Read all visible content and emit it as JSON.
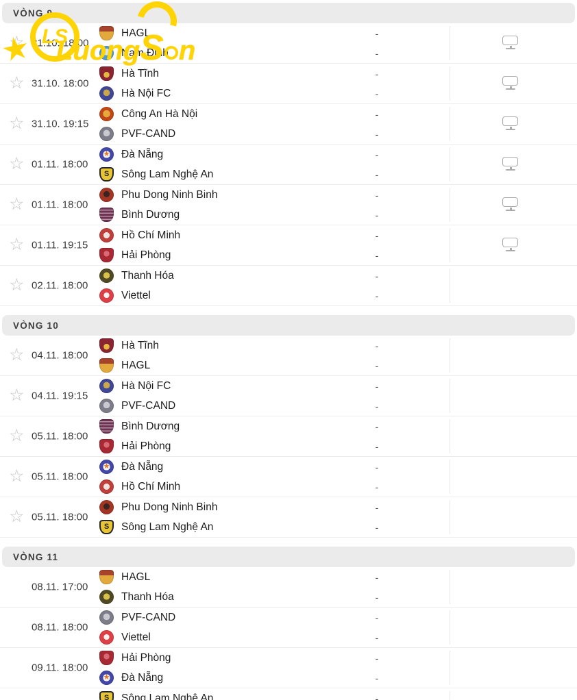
{
  "watermark": {
    "monogram": "LS",
    "text_part1": "Luong",
    "text_S": "S",
    "text_part2": "n",
    "color": "#ffd405"
  },
  "colors": {
    "section_header_bg": "#ebebeb",
    "section_header_text": "#3f3f3f",
    "row_separator": "#ededed",
    "star_icon": "#c6c6c6",
    "tv_icon": "#ababab",
    "datetime_text": "#3b3b3b",
    "team_text": "#1c1c1c",
    "score_text": "#4a4a4a",
    "divider": "#e7e7e7"
  },
  "icons": {
    "star": "☆",
    "tv": "tv-monitor"
  },
  "teams": {
    "HAGL": {
      "shape": "shield",
      "bg": "linear-gradient(180deg,#a8432b 0% 38%,#e3a93c 38% 100%)",
      "glyph": "",
      "glyph_color": ""
    },
    "Nam Định": {
      "shape": "circle",
      "bg": "radial-gradient(circle at 50% 42%,#cfe4f6 0% 30%,#4e9ad4 31% 100%)",
      "glyph": "",
      "glyph_color": ""
    },
    "Hà Tĩnh": {
      "shape": "shield",
      "bg": "radial-gradient(circle at 50% 58%,#e5b93f 0% 26%,#8a2430 27% 100%)",
      "glyph": "",
      "glyph_color": ""
    },
    "Hà Nội FC": {
      "shape": "circle",
      "bg": "radial-gradient(circle at 50% 45%,#caa84a 0% 30%,#3f4796 31% 100%)",
      "glyph": "",
      "glyph_color": ""
    },
    "Công An Hà Nội": {
      "shape": "circle",
      "bg": "radial-gradient(circle at 50% 48%,#e8a93c 0% 34%,#bf4718 35% 100%)",
      "glyph": "",
      "glyph_color": ""
    },
    "PVF-CAND": {
      "shape": "circle",
      "bg": "radial-gradient(circle at 50% 45%,#c9c9d2 0% 30%,#7d7d89 31% 100%)",
      "glyph": "",
      "glyph_color": ""
    },
    "Đà Nẵng": {
      "shape": "circle",
      "bg": "radial-gradient(circle at 50% 50%,#f5f2ec 0% 34%,#4347a8 35% 100%)",
      "glyph": "★",
      "glyph_color": "#e0752c"
    },
    "Sông Lam Nghệ An": {
      "shape": "shield",
      "bg": "linear-gradient(180deg,#e9c433 0% 100%)",
      "glyph": "S",
      "glyph_color": "#23262d",
      "ring": "#23262d"
    },
    "Phu Dong Ninh Binh": {
      "shape": "circle",
      "bg": "radial-gradient(circle at 50% 45%,#3a2420 0% 28%,#a33524 29% 100%)",
      "glyph": "",
      "glyph_color": ""
    },
    "Bình Dương": {
      "shape": "shield",
      "bg": "repeating-linear-gradient(180deg,#6e3150 0px 3px,#b391a4 3px 4.5px)",
      "glyph": "",
      "glyph_color": ""
    },
    "Hồ Chí Minh": {
      "shape": "circle",
      "bg": "radial-gradient(circle at 50% 50%,#f1e3e0 0% 30%,#bf3f3a 31% 100%)",
      "glyph": "",
      "glyph_color": ""
    },
    "Hải Phòng": {
      "shape": "shield",
      "bg": "radial-gradient(circle at 50% 40%,#d96a74 0% 25%,#a82833 26% 100%)",
      "glyph": "",
      "glyph_color": ""
    },
    "Thanh Hóa": {
      "shape": "circle",
      "bg": "radial-gradient(circle at 50% 48%,#d9c04a 0% 30%,#4f4a24 31% 100%)",
      "glyph": "",
      "glyph_color": ""
    },
    "Viettel": {
      "shape": "circle",
      "bg": "radial-gradient(circle at 50% 48%,#f7f3f3 0% 26%,#dd4046 27% 100%)",
      "glyph": "",
      "glyph_color": ""
    }
  },
  "sections": [
    {
      "title": "VÒNG 9",
      "matches": [
        {
          "starred": true,
          "datetime": "31.10. 18:00",
          "home": "HAGL",
          "away": "Nam Định",
          "home_score": "-",
          "away_score": "-",
          "tv": true
        },
        {
          "starred": true,
          "datetime": "31.10. 18:00",
          "home": "Hà Tĩnh",
          "away": "Hà Nội FC",
          "home_score": "-",
          "away_score": "-",
          "tv": true
        },
        {
          "starred": true,
          "datetime": "31.10. 19:15",
          "home": "Công An Hà Nội",
          "away": "PVF-CAND",
          "home_score": "-",
          "away_score": "-",
          "tv": true
        },
        {
          "starred": true,
          "datetime": "01.11. 18:00",
          "home": "Đà Nẵng",
          "away": "Sông Lam Nghệ An",
          "home_score": "-",
          "away_score": "-",
          "tv": true
        },
        {
          "starred": true,
          "datetime": "01.11. 18:00",
          "home": "Phu Dong Ninh Binh",
          "away": "Bình Dương",
          "home_score": "-",
          "away_score": "-",
          "tv": true
        },
        {
          "starred": true,
          "datetime": "01.11. 19:15",
          "home": "Hồ Chí Minh",
          "away": "Hải Phòng",
          "home_score": "-",
          "away_score": "-",
          "tv": true
        },
        {
          "starred": true,
          "datetime": "02.11. 18:00",
          "home": "Thanh Hóa",
          "away": "Viettel",
          "home_score": "-",
          "away_score": "-",
          "tv": false
        }
      ]
    },
    {
      "title": "VÒNG 10",
      "matches": [
        {
          "starred": true,
          "datetime": "04.11. 18:00",
          "home": "Hà Tĩnh",
          "away": "HAGL",
          "home_score": "-",
          "away_score": "-",
          "tv": false
        },
        {
          "starred": true,
          "datetime": "04.11. 19:15",
          "home": "Hà Nội FC",
          "away": "PVF-CAND",
          "home_score": "-",
          "away_score": "-",
          "tv": false
        },
        {
          "starred": true,
          "datetime": "05.11. 18:00",
          "home": "Bình Dương",
          "away": "Hải Phòng",
          "home_score": "-",
          "away_score": "-",
          "tv": false
        },
        {
          "starred": true,
          "datetime": "05.11. 18:00",
          "home": "Đà Nẵng",
          "away": "Hồ Chí Minh",
          "home_score": "-",
          "away_score": "-",
          "tv": false
        },
        {
          "starred": true,
          "datetime": "05.11. 18:00",
          "home": "Phu Dong Ninh Binh",
          "away": "Sông Lam Nghệ An",
          "home_score": "-",
          "away_score": "-",
          "tv": false
        }
      ]
    },
    {
      "title": "VÒNG 11",
      "matches": [
        {
          "starred": false,
          "datetime": "08.11. 17:00",
          "home": "HAGL",
          "away": "Thanh Hóa",
          "home_score": "-",
          "away_score": "-",
          "tv": false
        },
        {
          "starred": false,
          "datetime": "08.11. 18:00",
          "home": "PVF-CAND",
          "away": "Viettel",
          "home_score": "-",
          "away_score": "-",
          "tv": false
        },
        {
          "starred": false,
          "datetime": "09.11. 18:00",
          "home": "Hải Phòng",
          "away": "Đà Nẵng",
          "home_score": "-",
          "away_score": "-",
          "tv": false
        },
        {
          "starred": false,
          "datetime": "",
          "home": "Sông Lam Nghệ An",
          "away": null,
          "home_score": "-",
          "away_score": "",
          "tv": false
        }
      ]
    }
  ]
}
